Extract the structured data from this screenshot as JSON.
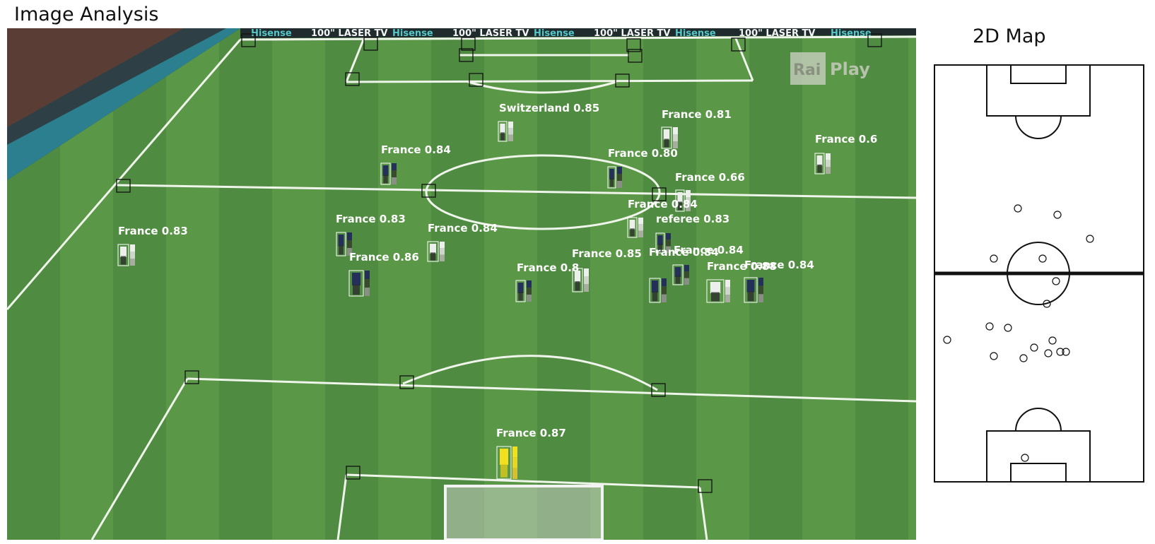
{
  "titles": {
    "analysis": "Image Analysis",
    "map": "2D Map"
  },
  "colors": {
    "pitch_dark": "#4c8a3e",
    "pitch_light": "#5d9b48",
    "line": "#f2f6ee",
    "label": "#ffffff",
    "keypoint": "#111111",
    "goalkeeper_kit": "#f2e01e",
    "france_kit": "#243059",
    "switzerland_kit": "#e8ecea"
  },
  "overlay_text": {
    "board_brands": [
      "Hisense",
      "100\" LASER TV",
      "Hisense",
      "100\" LASER TV",
      "Hisense",
      "100\" LASER TV",
      "Hisense",
      "100\" LASER TV",
      "Hisense"
    ],
    "watermark": [
      "Rai",
      "Play"
    ]
  },
  "detections": [
    {
      "label": "Switzerland 0.85",
      "kit": "light"
    },
    {
      "label": "France 0.81",
      "kit": "light"
    },
    {
      "label": "France 0.84",
      "kit": "dark"
    },
    {
      "label": "France 0.80",
      "kit": "dark"
    },
    {
      "label": "France 0.6",
      "kit": "light"
    },
    {
      "label": "France 0.66",
      "kit": "light"
    },
    {
      "label": "France 0.83",
      "kit": "light"
    },
    {
      "label": "France 0.83",
      "kit": "dark"
    },
    {
      "label": "France 0.84",
      "kit": "light"
    },
    {
      "label": "France 0.86",
      "kit": "dark"
    },
    {
      "label": "France 0.8",
      "kit": "dark"
    },
    {
      "label": "France 0.85",
      "kit": "light"
    },
    {
      "label": "referee 0.83",
      "kit": "dark"
    },
    {
      "label": "France 0.84",
      "kit": "light"
    },
    {
      "label": "France 0.84",
      "kit": "dark"
    },
    {
      "label": "France 0.88",
      "kit": "light"
    },
    {
      "label": "France 0.84",
      "kit": "dark"
    },
    {
      "label": "France 0.84",
      "kit": "dark"
    },
    {
      "label": "France 0.87",
      "kit": "yellow"
    }
  ]
}
